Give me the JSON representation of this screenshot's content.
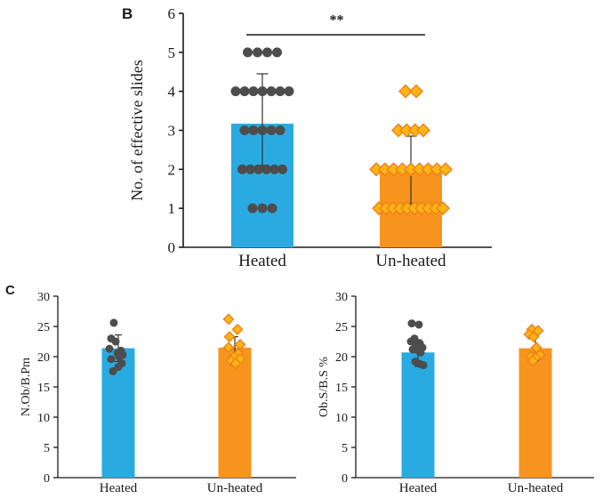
{
  "panel_b": {
    "label": "B"
  },
  "panel_c": {
    "label": "C"
  },
  "colors": {
    "heated_bar": "#29ABE2",
    "unheated_bar": "#F7941D",
    "heated_marker": "#4D4D4D",
    "unheated_marker_fill": "#FDB515",
    "unheated_marker_stroke": "#F08018",
    "axis": "#1A1A1A",
    "error": "#333333",
    "significance": "#1b1b2e"
  },
  "chart_data": [
    {
      "id": "b",
      "type": "bar",
      "panel": "B",
      "title": "",
      "xlabel": "",
      "ylabel": "No. of effective slides",
      "ylim": [
        0,
        6
      ],
      "yticks": [
        0,
        1,
        2,
        3,
        4,
        5,
        6
      ],
      "categories": [
        "Heated",
        "Un-heated"
      ],
      "bars": [
        {
          "category": "Heated",
          "mean": 3.17,
          "err_low": 2.1,
          "err_high": 4.45
        },
        {
          "category": "Un-heated",
          "mean": 1.93,
          "err_low": 1.12,
          "err_high": 2.85
        }
      ],
      "significance_label": "**",
      "series": [
        {
          "name": "Heated",
          "marker": "circle",
          "points": [
            [
              -16.5,
              5
            ],
            [
              -5.5,
              5
            ],
            [
              5.5,
              5
            ],
            [
              16.5,
              5
            ],
            [
              -30,
              4
            ],
            [
              -20,
              4
            ],
            [
              -10,
              4
            ],
            [
              0,
              4
            ],
            [
              10,
              4
            ],
            [
              20,
              4
            ],
            [
              30,
              4
            ],
            [
              -20,
              3
            ],
            [
              -10,
              3
            ],
            [
              0,
              3
            ],
            [
              10,
              3
            ],
            [
              20,
              3
            ],
            [
              -22.5,
              2
            ],
            [
              -13.5,
              2
            ],
            [
              -4.5,
              2
            ],
            [
              4.5,
              2
            ],
            [
              13.5,
              2
            ],
            [
              22.5,
              2
            ],
            [
              -11,
              1
            ],
            [
              0,
              1
            ],
            [
              11,
              1
            ]
          ]
        },
        {
          "name": "Un-heated",
          "marker": "diamond",
          "points": [
            [
              -6,
              4
            ],
            [
              6,
              4
            ],
            [
              -14,
              3
            ],
            [
              -4.7,
              3
            ],
            [
              4.7,
              3
            ],
            [
              14,
              3
            ],
            [
              -39,
              2
            ],
            [
              -29.2,
              2
            ],
            [
              -19.5,
              2
            ],
            [
              -9.7,
              2
            ],
            [
              0,
              2
            ],
            [
              9.7,
              2
            ],
            [
              19.5,
              2
            ],
            [
              29.2,
              2
            ],
            [
              39,
              2
            ],
            [
              -36,
              1
            ],
            [
              -28,
              1
            ],
            [
              -20,
              1
            ],
            [
              -12,
              1
            ],
            [
              -4,
              1
            ],
            [
              4,
              1
            ],
            [
              12,
              1
            ],
            [
              20,
              1
            ],
            [
              28,
              1
            ],
            [
              36,
              1
            ]
          ]
        }
      ]
    },
    {
      "id": "c1",
      "type": "bar",
      "panel": "C",
      "title": "",
      "xlabel": "",
      "ylabel": "N.Ob/B.Pm",
      "ylim": [
        0,
        30
      ],
      "yticks": [
        0,
        5,
        10,
        15,
        20,
        25,
        30
      ],
      "categories": [
        "Heated",
        "Un-heated"
      ],
      "bars": [
        {
          "category": "Heated",
          "mean": 21.4,
          "err_low": 19.2,
          "err_high": 23.6
        },
        {
          "category": "Un-heated",
          "mean": 21.5,
          "err_low": 19.7,
          "err_high": 23.3
        }
      ],
      "significance_label": "",
      "series": [
        {
          "name": "Heated",
          "marker": "circle",
          "points": [
            [
              -5,
              25.6
            ],
            [
              -8,
              23
            ],
            [
              -3,
              22.5
            ],
            [
              -10,
              21.3
            ],
            [
              3,
              21
            ],
            [
              -1,
              20.6
            ],
            [
              5,
              20.3
            ],
            [
              1,
              20
            ],
            [
              -8,
              19.6
            ],
            [
              4,
              18.9
            ],
            [
              0,
              18.3
            ],
            [
              -6,
              17.6
            ]
          ]
        },
        {
          "name": "Un-heated",
          "marker": "diamond",
          "points": [
            [
              -7,
              26.2
            ],
            [
              3,
              24.5
            ],
            [
              -6,
              23.3
            ],
            [
              6,
              22
            ],
            [
              -7,
              21.5
            ],
            [
              4,
              20.5
            ],
            [
              -1,
              20
            ],
            [
              6,
              19.6
            ],
            [
              -4,
              19.3
            ],
            [
              1,
              18.9
            ]
          ]
        }
      ]
    },
    {
      "id": "c2",
      "type": "bar",
      "panel": "C",
      "title": "",
      "xlabel": "",
      "ylabel": "Ob.S/B.S %",
      "ylim": [
        0,
        30
      ],
      "yticks": [
        0,
        5,
        10,
        15,
        20,
        25,
        30
      ],
      "categories": [
        "Heated",
        "Un-heated"
      ],
      "bars": [
        {
          "category": "Heated",
          "mean": 20.7,
          "err_low": 18.4,
          "err_high": 22.8
        },
        {
          "category": "Un-heated",
          "mean": 21.4,
          "err_low": 19.3,
          "err_high": 23.4
        }
      ],
      "significance_label": "",
      "series": [
        {
          "name": "Heated",
          "marker": "circle",
          "points": [
            [
              -7,
              25.5
            ],
            [
              1,
              25.3
            ],
            [
              -4,
              23
            ],
            [
              -8,
              22.5
            ],
            [
              2,
              22.2
            ],
            [
              -2,
              21.8
            ],
            [
              5,
              21.5
            ],
            [
              -6,
              21.2
            ],
            [
              0,
              21
            ],
            [
              3,
              20.7
            ],
            [
              -3,
              19.2
            ],
            [
              2,
              18.8
            ],
            [
              6,
              18.6
            ]
          ]
        },
        {
          "name": "Un-heated",
          "marker": "diamond",
          "points": [
            [
              -4,
              24.5
            ],
            [
              3,
              24.3
            ],
            [
              -7,
              23.7
            ],
            [
              -2,
              23.3
            ],
            [
              1,
              21.5
            ],
            [
              5,
              20.3
            ],
            [
              -5,
              20
            ],
            [
              0,
              19.8
            ],
            [
              -3,
              19.3
            ]
          ]
        }
      ]
    }
  ]
}
